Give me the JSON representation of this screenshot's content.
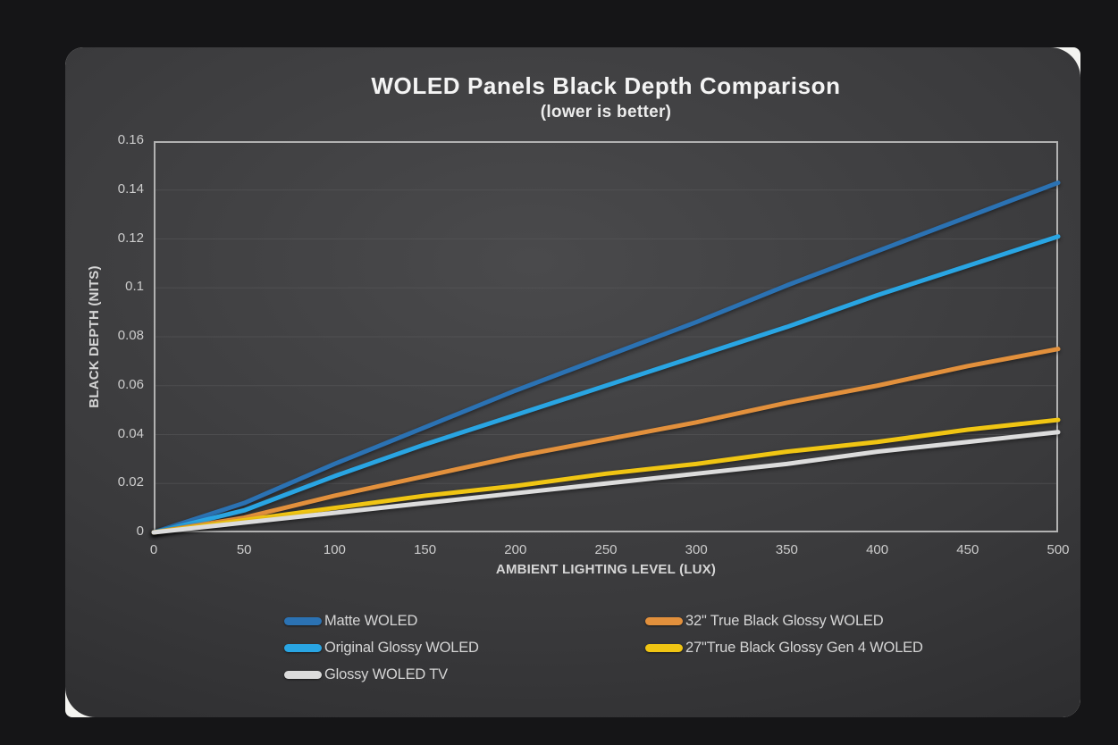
{
  "page": {
    "background": "#151517"
  },
  "card": {
    "background_center": "#4a4a4c",
    "background_edge": "#232325",
    "corner_accent_color": "#f4f4f1",
    "plot_border_color": "#b2b2b2",
    "gridline_color": "#5a5a5c",
    "text_color": "#d5d5d5"
  },
  "chart_data": {
    "type": "line",
    "title": "WOLED Panels Black Depth Comparison",
    "subtitle": "(lower is better)",
    "xlabel": "AMBIENT LIGHTING LEVEL (LUX)",
    "ylabel": "BLACK DEPTH (NITS)",
    "x": [
      0,
      50,
      100,
      150,
      200,
      250,
      300,
      350,
      400,
      450,
      500
    ],
    "xlim": [
      0,
      500
    ],
    "ylim": [
      0,
      0.16
    ],
    "x_tick_labels": [
      "0",
      "50",
      "100",
      "150",
      "200",
      "250",
      "300",
      "350",
      "400",
      "450",
      "500"
    ],
    "y_tick_values": [
      0,
      0.02,
      0.04,
      0.06,
      0.08,
      0.1,
      0.12,
      0.14,
      0.16
    ],
    "y_tick_labels": [
      "0",
      "0.02",
      "0.04",
      "0.06",
      "0.08",
      "0.1",
      "0.12",
      "0.14",
      "0.16"
    ],
    "grid": "horizontal-only",
    "legend_position": "bottom-two-columns",
    "series": [
      {
        "name": "Matte WOLED",
        "color": "#2b72b3",
        "values": [
          0,
          0.012,
          0.028,
          0.043,
          0.058,
          0.072,
          0.086,
          0.101,
          0.115,
          0.129,
          0.143
        ]
      },
      {
        "name": "Original Glossy WOLED",
        "color": "#29a5e3",
        "values": [
          0,
          0.009,
          0.023,
          0.036,
          0.048,
          0.06,
          0.072,
          0.084,
          0.097,
          0.109,
          0.121
        ]
      },
      {
        "name": "32\" True Black Glossy WOLED",
        "color": "#e2903c",
        "values": [
          0,
          0.006,
          0.015,
          0.023,
          0.031,
          0.038,
          0.045,
          0.053,
          0.06,
          0.068,
          0.075
        ]
      },
      {
        "name": "27\"True Black Glossy Gen 4 WOLED",
        "color": "#f0c513",
        "values": [
          0,
          0.005,
          0.01,
          0.015,
          0.019,
          0.024,
          0.028,
          0.033,
          0.037,
          0.042,
          0.046
        ]
      },
      {
        "name": "Glossy WOLED TV",
        "color": "#dcdcdc",
        "values": [
          0,
          0.004,
          0.008,
          0.012,
          0.016,
          0.02,
          0.024,
          0.028,
          0.033,
          0.037,
          0.041
        ]
      }
    ],
    "legend_order": [
      0,
      2,
      1,
      3,
      4
    ]
  }
}
